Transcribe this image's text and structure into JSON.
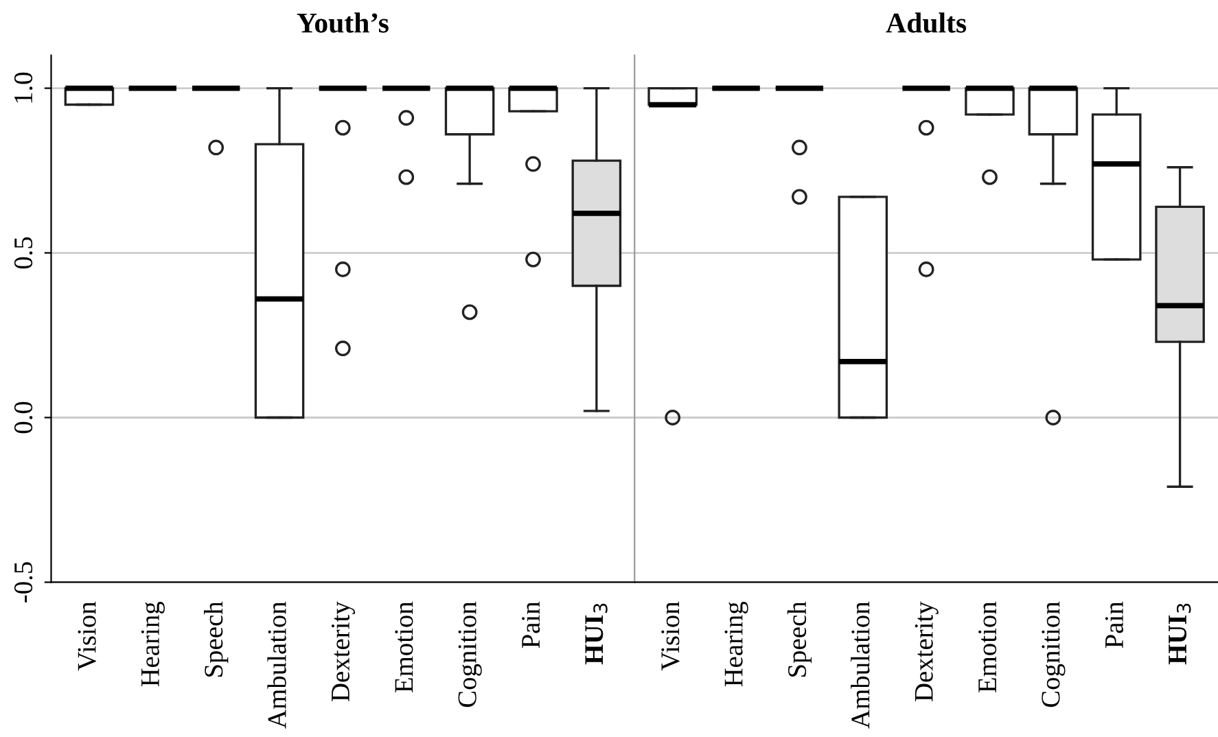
{
  "chart_data": [
    {
      "type": "box",
      "title": "Youth’s",
      "categories": [
        "Vision",
        "Hearing",
        "Speech",
        "Ambulation",
        "Dexterity",
        "Emotion",
        "Cognition",
        "Pain",
        "HUI$_{3}$"
      ],
      "colors": [
        "#ffffff",
        null,
        null,
        "#ffffff",
        null,
        null,
        "#ffffff",
        "#ffffff",
        "#dddddd"
      ],
      "boxes": [
        {
          "low": 0.95,
          "q1": 0.95,
          "median": 1.0,
          "q3": 1.0,
          "high": 1.0
        },
        {
          "low": 1.0,
          "q1": 1.0,
          "median": 1.0,
          "q3": 1.0,
          "high": 1.0
        },
        {
          "low": 1.0,
          "q1": 1.0,
          "median": 1.0,
          "q3": 1.0,
          "high": 1.0,
          "outliers": [
            0.82
          ]
        },
        {
          "low": 0.0,
          "q1": 0.0,
          "median": 0.36,
          "q3": 0.83,
          "high": 1.0
        },
        {
          "low": 1.0,
          "q1": 1.0,
          "median": 1.0,
          "q3": 1.0,
          "high": 1.0,
          "outliers": [
            0.88,
            0.45,
            0.21
          ]
        },
        {
          "low": 1.0,
          "q1": 1.0,
          "median": 1.0,
          "q3": 1.0,
          "high": 1.0,
          "outliers": [
            0.91,
            0.73
          ]
        },
        {
          "low": 0.71,
          "q1": 0.86,
          "median": 1.0,
          "q3": 1.0,
          "high": 1.0,
          "outliers": [
            0.32
          ]
        },
        {
          "low": 0.93,
          "q1": 0.93,
          "median": 1.0,
          "q3": 1.0,
          "high": 1.0,
          "outliers": [
            0.77,
            0.48
          ]
        },
        {
          "low": 0.02,
          "q1": 0.4,
          "median": 0.62,
          "q3": 0.78,
          "high": 1.0
        }
      ],
      "ylim": [
        -0.5,
        1.1
      ],
      "yticks": [
        {
          "value": -0.5,
          "label": "-0.5"
        },
        {
          "value": 0,
          "label": "0.0"
        },
        {
          "value": 0.5,
          "label": "0.5"
        },
        {
          "value": 1,
          "label": "1.0"
        }
      ],
      "grid": "y"
    },
    {
      "type": "box",
      "title": "Adults",
      "categories": [
        "Vision",
        "Hearing",
        "Speech",
        "Ambulation",
        "Dexterity",
        "Emotion",
        "Cognition",
        "Pain",
        "HUI$_{3}$"
      ],
      "colors": [
        "#ffffff",
        null,
        null,
        "#ffffff",
        null,
        "#ffffff",
        "#ffffff",
        "#ffffff",
        "#dddddd"
      ],
      "boxes": [
        {
          "low": 0.95,
          "q1": 0.95,
          "median": 0.95,
          "q3": 1.0,
          "high": 1.0,
          "outliers": [
            0.0
          ]
        },
        {
          "low": 1.0,
          "q1": 1.0,
          "median": 1.0,
          "q3": 1.0,
          "high": 1.0
        },
        {
          "low": 1.0,
          "q1": 1.0,
          "median": 1.0,
          "q3": 1.0,
          "high": 1.0,
          "outliers": [
            0.82,
            0.67
          ]
        },
        {
          "low": 0.0,
          "q1": 0.0,
          "median": 0.17,
          "q3": 0.67,
          "high": 0.67
        },
        {
          "low": 1.0,
          "q1": 1.0,
          "median": 1.0,
          "q3": 1.0,
          "high": 1.0,
          "outliers": [
            0.88,
            0.45
          ]
        },
        {
          "low": 0.92,
          "q1": 0.92,
          "median": 1.0,
          "q3": 1.0,
          "high": 1.0,
          "outliers": [
            0.73
          ]
        },
        {
          "low": 0.71,
          "q1": 0.86,
          "median": 1.0,
          "q3": 1.0,
          "high": 1.0,
          "outliers": [
            0.0
          ]
        },
        {
          "low": 0.48,
          "q1": 0.48,
          "median": 0.77,
          "q3": 0.92,
          "high": 1.0
        },
        {
          "low": -0.21,
          "q1": 0.23,
          "median": 0.34,
          "q3": 0.64,
          "high": 0.76
        }
      ],
      "ylim": [
        -0.5,
        1.1
      ],
      "yticks": [
        -0.5,
        0,
        0.5,
        1
      ],
      "grid": "y",
      "tick_labels": "x"
    }
  ]
}
